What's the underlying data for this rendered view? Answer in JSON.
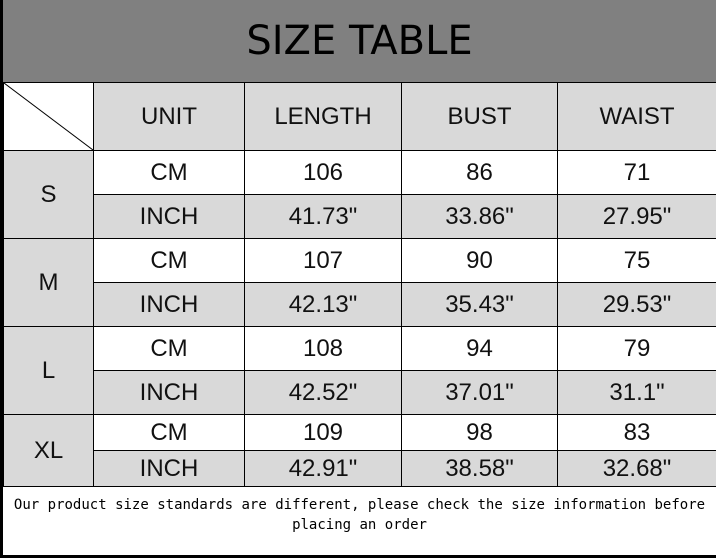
{
  "title": "SIZE TABLE",
  "headers": [
    "UNIT",
    "LENGTH",
    "BUST",
    "WAIST"
  ],
  "sizes": [
    {
      "size": "S",
      "rows": [
        {
          "unit": "CM",
          "length": "106",
          "bust": "86",
          "waist": "71"
        },
        {
          "unit": "INCH",
          "length": "41.73\"",
          "bust": "33.86\"",
          "waist": "27.95\""
        }
      ]
    },
    {
      "size": "M",
      "rows": [
        {
          "unit": "CM",
          "length": "107",
          "bust": "90",
          "waist": "75"
        },
        {
          "unit": "INCH",
          "length": "42.13\"",
          "bust": "35.43\"",
          "waist": "29.53\""
        }
      ]
    },
    {
      "size": "L",
      "rows": [
        {
          "unit": "CM",
          "length": "108",
          "bust": "94",
          "waist": "79"
        },
        {
          "unit": "INCH",
          "length": "42.52\"",
          "bust": "37.01\"",
          "waist": "31.1\""
        }
      ]
    },
    {
      "size": "XL",
      "rows": [
        {
          "unit": "CM",
          "length": "109",
          "bust": "98",
          "waist": "83"
        },
        {
          "unit": "INCH",
          "length": "42.91\"",
          "bust": "38.58\"",
          "waist": "32.68\""
        }
      ]
    }
  ],
  "note": "Our product size standards are different, please check the size information before placing an order",
  "colors": {
    "title_bg": "#808080",
    "cell_gray": "#d9d9d9"
  }
}
